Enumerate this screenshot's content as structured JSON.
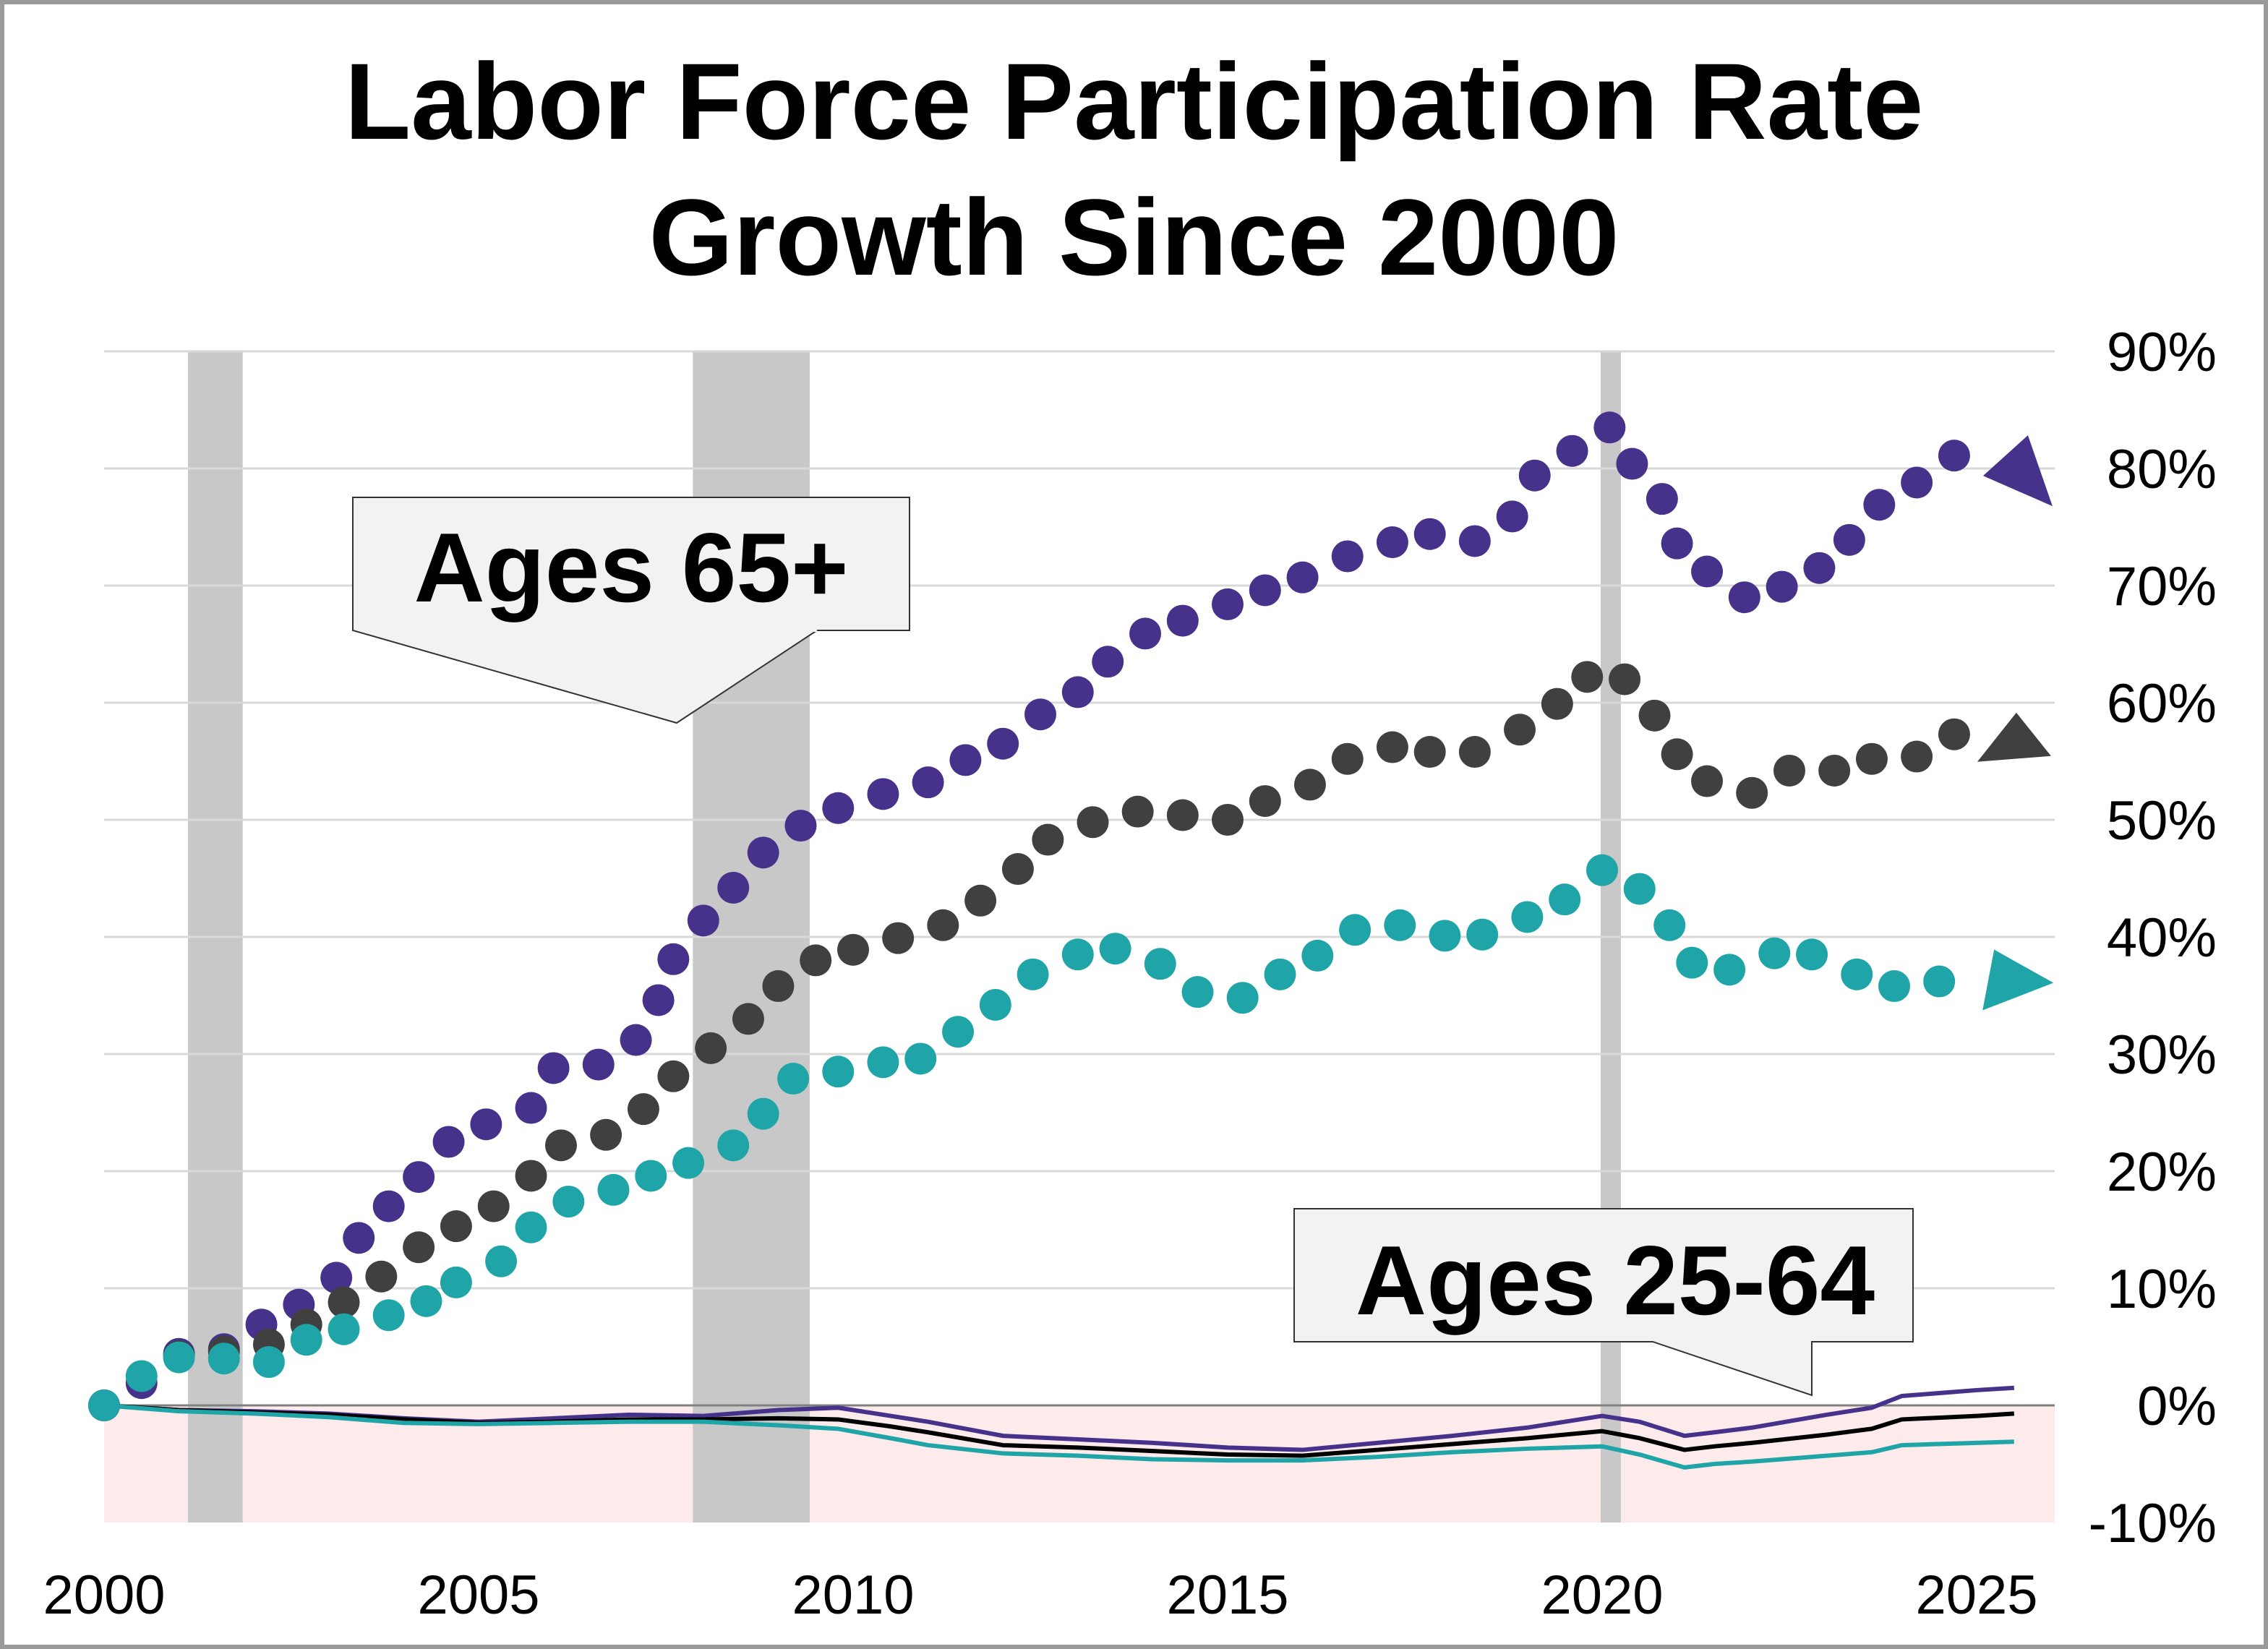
{
  "chart_data": {
    "type": "scatter",
    "title": "Labor Force Participation Rate Growth Since 2000",
    "title_lines": [
      "Labor Force Participation Rate",
      "Growth Since 2000"
    ],
    "xlabel": "",
    "ylabel": "",
    "xlim": [
      2000,
      2026
    ],
    "ylim": [
      -10,
      90
    ],
    "x_ticks": [
      "2000",
      "2005",
      "2010",
      "2015",
      "2020",
      "2025"
    ],
    "y_ticks": [
      "-10%",
      "0%",
      "10%",
      "20%",
      "30%",
      "40%",
      "50%",
      "60%",
      "70%",
      "80%",
      "90%"
    ],
    "y_axis_position": "right",
    "grid": true,
    "negative_region_fill": "#fdeaea",
    "recession_bands": [
      [
        2001.12,
        2001.85
      ],
      [
        2007.86,
        2009.42
      ],
      [
        2019.98,
        2020.25
      ]
    ],
    "recession_color": "#c8c8c8",
    "annotations": [
      {
        "text": "Ages 65+",
        "points_to": "dotted series"
      },
      {
        "text": "Ages 25-64",
        "points_to": "solid series"
      }
    ],
    "series": [
      {
        "group": "Ages 65+",
        "style": "dotted",
        "color": "#46328a",
        "x": [
          2000.0,
          2000.5,
          2001.0,
          2001.6,
          2002.1,
          2002.6,
          2003.1,
          2003.4,
          2003.8,
          2004.2,
          2004.6,
          2005.1,
          2005.7,
          2006.0,
          2006.6,
          2007.1,
          2007.4,
          2007.6,
          2008.0,
          2008.4,
          2008.8,
          2009.3,
          2009.8,
          2010.4,
          2011.0,
          2011.5,
          2012.0,
          2012.5,
          2013.0,
          2013.4,
          2013.9,
          2014.4,
          2015.0,
          2015.5,
          2016.0,
          2016.6,
          2017.2,
          2017.7,
          2018.3,
          2018.8,
          2019.1,
          2019.6,
          2020.1,
          2020.4,
          2020.8,
          2021.0,
          2021.4,
          2021.9,
          2022.4,
          2022.9,
          2023.3,
          2023.7,
          2024.2,
          2024.7
        ],
        "y": [
          0,
          1.9,
          4.4,
          4.8,
          6.9,
          8.6,
          10.9,
          14.3,
          17.0,
          19.5,
          22.5,
          24.0,
          25.4,
          28.8,
          29.1,
          31.2,
          34.6,
          38.1,
          41.4,
          44.2,
          47.2,
          49.5,
          51.0,
          52.2,
          53.2,
          55.1,
          56.5,
          59.0,
          60.9,
          63.5,
          65.9,
          67.0,
          68.4,
          69.6,
          70.7,
          72.5,
          73.7,
          74.4,
          73.8,
          75.9,
          79.4,
          81.5,
          83.5,
          80.4,
          77.4,
          73.6,
          71.2,
          69.0,
          69.9,
          71.5,
          73.9,
          76.9,
          78.8,
          81.1
        ]
      },
      {
        "group": "Ages 65+",
        "style": "dotted",
        "color": "#404040",
        "x": [
          2000.0,
          2001.0,
          2001.6,
          2002.2,
          2002.7,
          2003.2,
          2003.7,
          2004.2,
          2004.7,
          2005.2,
          2005.7,
          2006.1,
          2006.7,
          2007.2,
          2007.6,
          2008.1,
          2008.6,
          2009.0,
          2009.5,
          2010.0,
          2010.6,
          2011.2,
          2011.7,
          2012.2,
          2012.6,
          2013.2,
          2013.8,
          2014.4,
          2015.0,
          2015.5,
          2016.1,
          2016.6,
          2017.2,
          2017.7,
          2018.3,
          2018.9,
          2019.4,
          2019.8,
          2020.3,
          2020.7,
          2021.0,
          2021.4,
          2022.0,
          2022.5,
          2023.1,
          2023.6,
          2024.2,
          2024.7
        ],
        "y": [
          0,
          4.2,
          4.6,
          5.2,
          6.9,
          8.8,
          11.0,
          13.5,
          15.3,
          17.0,
          19.6,
          22.2,
          23.1,
          25.3,
          28.1,
          30.5,
          33.0,
          35.8,
          38.0,
          38.9,
          39.9,
          41.0,
          43.1,
          45.8,
          48.3,
          49.8,
          50.7,
          50.4,
          50.0,
          51.6,
          53.0,
          55.2,
          56.2,
          55.8,
          55.8,
          57.7,
          59.9,
          62.2,
          62.0,
          58.9,
          55.6,
          53.3,
          52.3,
          54.2,
          54.2,
          55.2,
          55.4,
          57.3
        ]
      },
      {
        "group": "Ages 65+",
        "style": "dotted",
        "color": "#1fa5a8",
        "x": [
          2000.0,
          2000.5,
          2001.0,
          2001.6,
          2002.2,
          2002.7,
          2003.2,
          2003.8,
          2004.3,
          2004.7,
          2005.3,
          2005.7,
          2006.2,
          2006.8,
          2007.3,
          2007.8,
          2008.4,
          2008.8,
          2009.2,
          2009.8,
          2010.4,
          2010.9,
          2011.4,
          2011.9,
          2012.4,
          2013.0,
          2013.5,
          2014.1,
          2014.6,
          2015.2,
          2015.7,
          2016.2,
          2016.7,
          2017.3,
          2017.9,
          2018.4,
          2019.0,
          2019.5,
          2020.0,
          2020.5,
          2020.9,
          2021.2,
          2021.7,
          2022.3,
          2022.8,
          2023.4,
          2023.9,
          2024.5
        ],
        "y": [
          0,
          2.5,
          4.1,
          4.0,
          3.7,
          5.6,
          6.5,
          7.7,
          8.9,
          10.5,
          12.3,
          15.2,
          17.4,
          18.4,
          19.6,
          20.7,
          22.2,
          24.9,
          27.9,
          28.5,
          29.3,
          29.6,
          31.9,
          34.2,
          36.8,
          38.5,
          39.0,
          37.7,
          35.3,
          34.8,
          36.8,
          38.4,
          40.6,
          41.0,
          40.1,
          40.2,
          41.7,
          43.2,
          45.7,
          44.1,
          41.0,
          37.8,
          37.2,
          38.6,
          38.5,
          36.8,
          35.8,
          36.2
        ]
      },
      {
        "group": "Ages 25-64",
        "style": "solid",
        "color": "#46328a",
        "x": [
          2000,
          2001,
          2002,
          2003,
          2004,
          2005,
          2006,
          2007,
          2008,
          2009,
          2009.8,
          2010.5,
          2011,
          2012,
          2013,
          2014,
          2015,
          2016,
          2017,
          2018,
          2019,
          2020,
          2020.5,
          2021.1,
          2021.5,
          2022,
          2023,
          2023.6,
          2024,
          2025,
          2025.5
        ],
        "y": [
          0,
          -0.4,
          -0.5,
          -0.7,
          -1.1,
          -1.4,
          -1.1,
          -0.8,
          -0.9,
          -0.4,
          -0.2,
          -0.9,
          -1.4,
          -2.6,
          -2.9,
          -3.2,
          -3.6,
          -3.8,
          -3.2,
          -2.6,
          -1.9,
          -0.9,
          -1.4,
          -2.6,
          -2.3,
          -1.9,
          -0.8,
          -0.2,
          0.8,
          1.3,
          1.5
        ]
      },
      {
        "group": "Ages 25-64",
        "style": "solid",
        "color": "#000000",
        "x": [
          2000,
          2001,
          2002,
          2003,
          2004,
          2005,
          2006,
          2007,
          2008,
          2009,
          2009.8,
          2010.5,
          2011,
          2012,
          2013,
          2014,
          2015,
          2016,
          2017,
          2018,
          2019,
          2020,
          2020.5,
          2021.1,
          2021.5,
          2022,
          2023,
          2023.6,
          2024,
          2025,
          2025.5
        ],
        "y": [
          0,
          -0.4,
          -0.6,
          -0.8,
          -1.2,
          -1.5,
          -1.4,
          -1.2,
          -1.2,
          -1.1,
          -1.2,
          -1.8,
          -2.3,
          -3.4,
          -3.6,
          -3.9,
          -4.2,
          -4.3,
          -3.8,
          -3.3,
          -2.8,
          -2.2,
          -2.8,
          -3.8,
          -3.5,
          -3.2,
          -2.5,
          -2.0,
          -1.2,
          -0.9,
          -0.7
        ]
      },
      {
        "group": "Ages 25-64",
        "style": "solid",
        "color": "#1fa5a8",
        "x": [
          2000,
          2001,
          2002,
          2003,
          2004,
          2005,
          2006,
          2007,
          2008,
          2009,
          2009.8,
          2010.5,
          2011,
          2012,
          2013,
          2014,
          2015,
          2016,
          2017,
          2018,
          2019,
          2020,
          2020.5,
          2021.1,
          2021.5,
          2022,
          2023,
          2023.6,
          2024,
          2025,
          2025.5
        ],
        "y": [
          0,
          -0.5,
          -0.7,
          -1.0,
          -1.5,
          -1.6,
          -1.5,
          -1.4,
          -1.4,
          -1.7,
          -2.0,
          -2.8,
          -3.4,
          -4.1,
          -4.3,
          -4.6,
          -4.7,
          -4.7,
          -4.4,
          -4.0,
          -3.7,
          -3.5,
          -4.2,
          -5.3,
          -5.0,
          -4.8,
          -4.3,
          -4.0,
          -3.4,
          -3.2,
          -3.1
        ]
      }
    ]
  }
}
